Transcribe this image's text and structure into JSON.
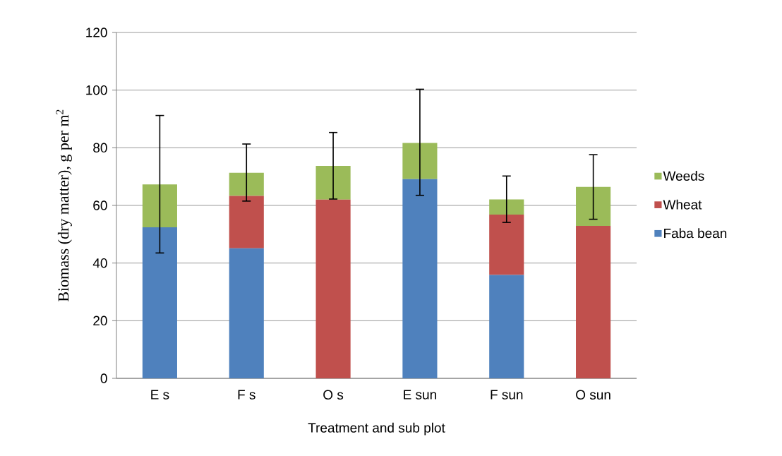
{
  "chart_data": {
    "type": "bar",
    "stacked": true,
    "xlabel": "Treatment and sub plot",
    "ylabel": "Biomass (dry matter), g per m$^{2}$",
    "categories": [
      "E s",
      "F s",
      "O s",
      "E sun",
      "F sun",
      "O sun"
    ],
    "series": [
      {
        "name": "Faba bean",
        "color": "#4f81bd",
        "values": [
          52.4,
          45.1,
          0,
          69.1,
          35.9,
          0
        ]
      },
      {
        "name": "Wheat",
        "color": "#c0504d",
        "values": [
          0,
          18.2,
          62.0,
          0,
          20.9,
          52.9
        ]
      },
      {
        "name": "Weeds",
        "color": "#9bbb59",
        "values": [
          14.9,
          8.0,
          11.7,
          12.6,
          5.3,
          13.5
        ],
        "errors": [
          [
            43.5,
            91.2
          ],
          [
            61.5,
            81.3
          ],
          [
            62.2,
            85.3
          ],
          [
            63.5,
            100.3
          ],
          [
            54.1,
            70.2
          ],
          [
            55.2,
            77.6
          ]
        ]
      }
    ],
    "ylim": [
      0,
      120
    ],
    "yticks": [
      0,
      20,
      40,
      60,
      80,
      100,
      120
    ],
    "grid": "y",
    "legend": "right"
  }
}
